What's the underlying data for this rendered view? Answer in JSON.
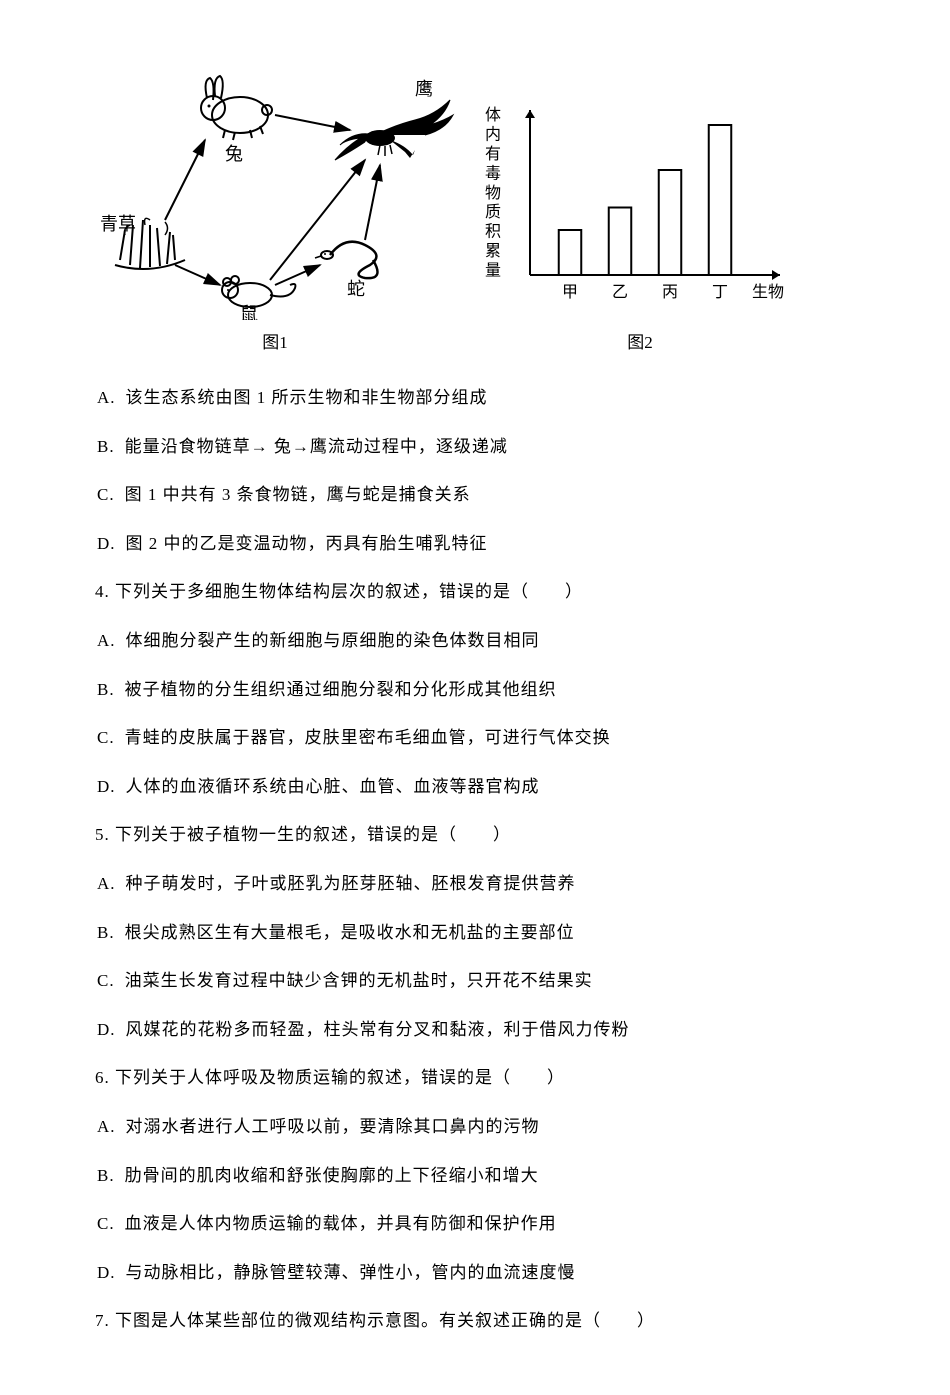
{
  "figure1": {
    "caption": "图1",
    "labels": {
      "grass": "青草",
      "rabbit": "兔",
      "mouse": "鼠",
      "snake": "蛇",
      "eagle": "鹰"
    },
    "stroke": "#000000",
    "fill": "#000000"
  },
  "figure2": {
    "caption": "图2",
    "ylabel_chars": [
      "体",
      "内",
      "有",
      "毒",
      "物",
      "质",
      "积",
      "累",
      "量"
    ],
    "xlabel_end": "生物",
    "categories": [
      "甲",
      "乙",
      "丙",
      "丁"
    ],
    "values": [
      30,
      45,
      70,
      100
    ],
    "ymax": 110,
    "bar_fill": "#ffffff",
    "bar_stroke": "#000000",
    "axis_color": "#000000",
    "font_size": 16
  },
  "options_q3": [
    {
      "letter": "A.",
      "text": "该生态系统由图 1 所示生物和非生物部分组成"
    },
    {
      "letter": "B.",
      "text": "能量沿食物链草→ 兔→鹰流动过程中，逐级递减"
    },
    {
      "letter": "C.",
      "text": "图 1 中共有 3 条食物链，鹰与蛇是捕食关系"
    },
    {
      "letter": "D.",
      "text": "图 2 中的乙是变温动物，丙具有胎生哺乳特征"
    }
  ],
  "q4": {
    "stem": "4. 下列关于多细胞生物体结构层次的叙述，错误的是（　　）",
    "options": [
      {
        "letter": "A.",
        "text": "体细胞分裂产生的新细胞与原细胞的染色体数目相同"
      },
      {
        "letter": "B.",
        "text": "被子植物的分生组织通过细胞分裂和分化形成其他组织"
      },
      {
        "letter": "C.",
        "text": "青蛙的皮肤属于器官，皮肤里密布毛细血管，可进行气体交换"
      },
      {
        "letter": "D.",
        "text": "人体的血液循环系统由心脏、血管、血液等器官构成"
      }
    ]
  },
  "q5": {
    "stem": "5. 下列关于被子植物一生的叙述，错误的是（　　）",
    "options": [
      {
        "letter": "A.",
        "text": "种子萌发时，子叶或胚乳为胚芽胚轴、胚根发育提供营养"
      },
      {
        "letter": "B.",
        "text": "根尖成熟区生有大量根毛，是吸收水和无机盐的主要部位"
      },
      {
        "letter": "C.",
        "text": "油菜生长发育过程中缺少含钾的无机盐时，只开花不结果实"
      },
      {
        "letter": "D.",
        "text": "风媒花的花粉多而轻盈，柱头常有分叉和黏液，利于借风力传粉"
      }
    ]
  },
  "q6": {
    "stem": "6. 下列关于人体呼吸及物质运输的叙述，错误的是（　　）",
    "options": [
      {
        "letter": "A.",
        "text": "对溺水者进行人工呼吸以前，要清除其口鼻内的污物"
      },
      {
        "letter": "B.",
        "text": "肋骨间的肌肉收缩和舒张使胸廓的上下径缩小和增大"
      },
      {
        "letter": "C.",
        "text": "血液是人体内物质运输的载体，并具有防御和保护作用"
      },
      {
        "letter": "D.",
        "text": "与动脉相比，静脉管壁较薄、弹性小，管内的血流速度慢"
      }
    ]
  },
  "q7": {
    "stem": "7. 下图是人体某些部位的微观结构示意图。有关叙述正确的是（　　）"
  }
}
